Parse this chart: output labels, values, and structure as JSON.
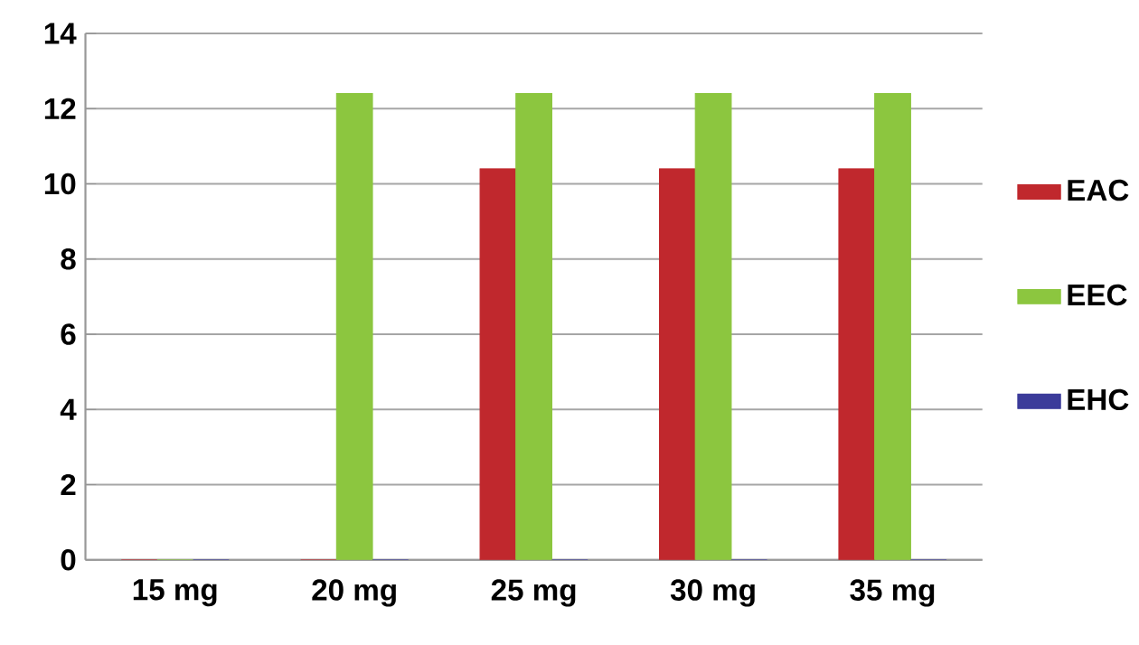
{
  "chart_data": {
    "type": "bar",
    "categories": [
      "15 mg",
      "20 mg",
      "25 mg",
      "30 mg",
      "35 mg"
    ],
    "series": [
      {
        "name": "EAC",
        "color": "#c0282d",
        "values": [
          0,
          0,
          10.4,
          10.4,
          10.4
        ]
      },
      {
        "name": "EEC",
        "color": "#8cc63f",
        "values": [
          0,
          12.4,
          12.4,
          12.4,
          12.4
        ]
      },
      {
        "name": "EHC",
        "color": "#3b3b9a",
        "values": [
          0,
          0,
          0,
          0,
          0
        ]
      }
    ],
    "ylim": [
      0,
      14
    ],
    "yticks": [
      0,
      2,
      4,
      6,
      8,
      10,
      12,
      14
    ],
    "grid": "y",
    "legend": "right"
  }
}
